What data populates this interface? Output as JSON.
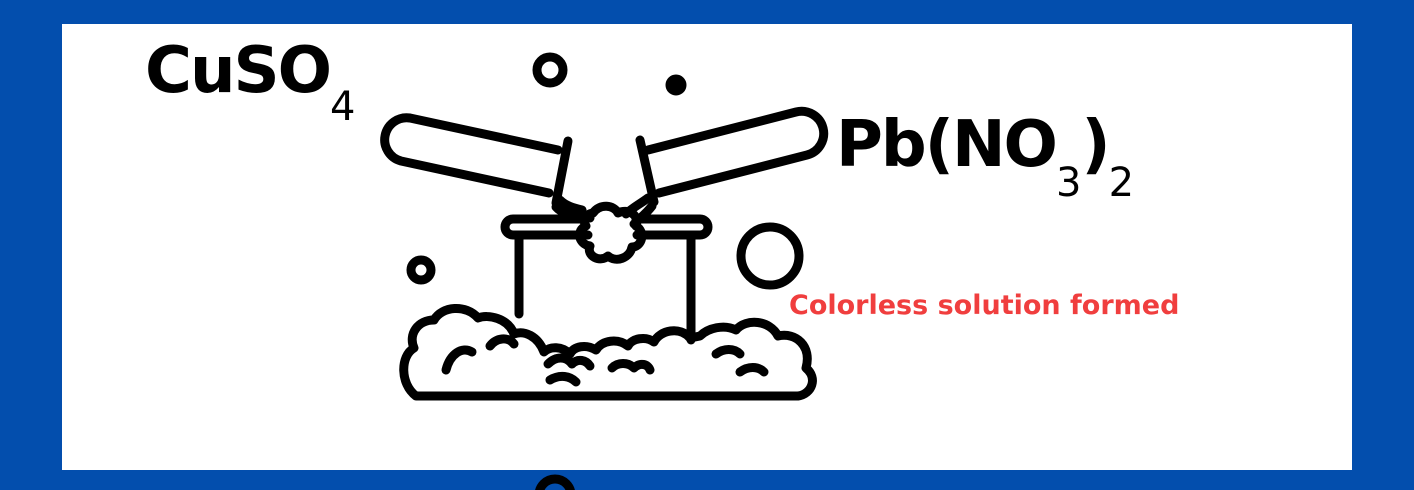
{
  "colors": {
    "frame": "#034EAD",
    "panel": "#ffffff",
    "ink": "#000000",
    "observation": "#F03E3E"
  },
  "reactant_left": {
    "main": "CuSO",
    "subscript": "4"
  },
  "reactant_right": {
    "prefix": "Pb(NO",
    "inner_subscript": "3",
    "close": ")",
    "outer_subscript": "2"
  },
  "observation": "Colorless solution formed",
  "illustration": {
    "icons": [
      "test-tube-icon",
      "test-tube-icon",
      "beaker-icon",
      "bubble-icon",
      "foam-icon"
    ]
  }
}
